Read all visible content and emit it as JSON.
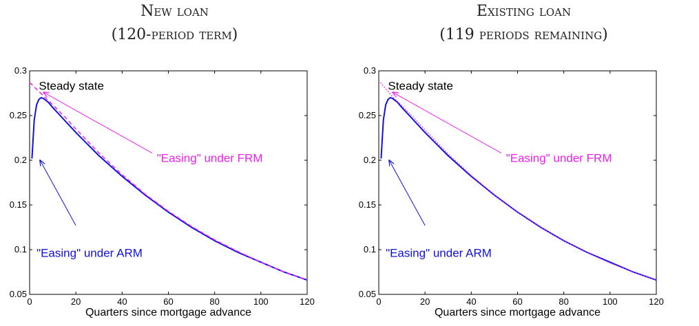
{
  "colors": {
    "arm": "#1010e0",
    "frm": "#ee22ee",
    "steady": "#000000"
  },
  "chart_data": [
    {
      "type": "line",
      "title_line1": "New loan",
      "title_line2": "(120-period term)",
      "xlabel": "Quarters since mortgage advance",
      "ylabel": "",
      "xlim": [
        0,
        120
      ],
      "ylim": [
        0.05,
        0.3
      ],
      "xticks": [
        0,
        20,
        40,
        60,
        80,
        100,
        120
      ],
      "yticks": [
        0.05,
        0.1,
        0.15,
        0.2,
        0.25,
        0.3
      ],
      "ytick_labels": [
        "0.05",
        "0.1",
        "0.15",
        "0.2",
        "0.25",
        "0.3"
      ],
      "grid": false,
      "annotations": {
        "steady": "Steady state",
        "frm": "\"Easing\" under FRM",
        "arm": "\"Easing\" under ARM"
      },
      "series": [
        {
          "key": "arm",
          "style": "solid",
          "x": [
            1,
            2,
            3,
            4,
            5,
            6,
            8,
            10,
            15,
            20,
            30,
            40,
            50,
            60,
            70,
            80,
            90,
            100,
            110,
            120
          ],
          "y": [
            0.202,
            0.245,
            0.262,
            0.268,
            0.27,
            0.269,
            0.265,
            0.259,
            0.245,
            0.231,
            0.205,
            0.182,
            0.161,
            0.142,
            0.125,
            0.11,
            0.097,
            0.086,
            0.075,
            0.066
          ]
        },
        {
          "key": "frm",
          "style": "dashed",
          "x": [
            0,
            2,
            4,
            6,
            8,
            10,
            15,
            20,
            30,
            40,
            50,
            60,
            70,
            80,
            90,
            100,
            110,
            120
          ],
          "y": [
            0.287,
            0.282,
            0.277,
            0.272,
            0.267,
            0.262,
            0.249,
            0.235,
            0.208,
            0.184,
            0.162,
            0.143,
            0.126,
            0.111,
            0.098,
            0.086,
            0.075,
            0.066
          ]
        }
      ]
    },
    {
      "type": "line",
      "title_line1": "Existing loan",
      "title_line2": "(119 periods remaining)",
      "xlabel": "Quarters since mortgage advance",
      "ylabel": "",
      "xlim": [
        0,
        120
      ],
      "ylim": [
        0.05,
        0.3
      ],
      "xticks": [
        0,
        20,
        40,
        60,
        80,
        100,
        120
      ],
      "yticks": [
        0.05,
        0.1,
        0.15,
        0.2,
        0.25,
        0.3
      ],
      "ytick_labels": [
        "0.05",
        "0.1",
        "0.15",
        "0.2",
        "0.25",
        "0.3"
      ],
      "grid": false,
      "annotations": {
        "steady": "Steady state",
        "frm": "\"Easing\" under FRM",
        "arm": "\"Easing\" under ARM"
      },
      "series": [
        {
          "key": "arm",
          "style": "solid",
          "x": [
            1,
            2,
            3,
            4,
            5,
            6,
            8,
            10,
            15,
            20,
            30,
            40,
            50,
            60,
            70,
            80,
            90,
            100,
            110,
            120
          ],
          "y": [
            0.202,
            0.245,
            0.262,
            0.268,
            0.27,
            0.269,
            0.265,
            0.259,
            0.245,
            0.231,
            0.205,
            0.182,
            0.161,
            0.142,
            0.125,
            0.11,
            0.097,
            0.086,
            0.075,
            0.066
          ]
        },
        {
          "key": "frm",
          "style": "dotted",
          "x": [
            0,
            2,
            4,
            6,
            8,
            10,
            15,
            20,
            30,
            40,
            50,
            60,
            70,
            80,
            90,
            100,
            110,
            120
          ],
          "y": [
            0.289,
            0.283,
            0.277,
            0.271,
            0.266,
            0.261,
            0.248,
            0.234,
            0.207,
            0.183,
            0.161,
            0.142,
            0.125,
            0.11,
            0.097,
            0.085,
            0.075,
            0.066
          ]
        }
      ]
    }
  ]
}
